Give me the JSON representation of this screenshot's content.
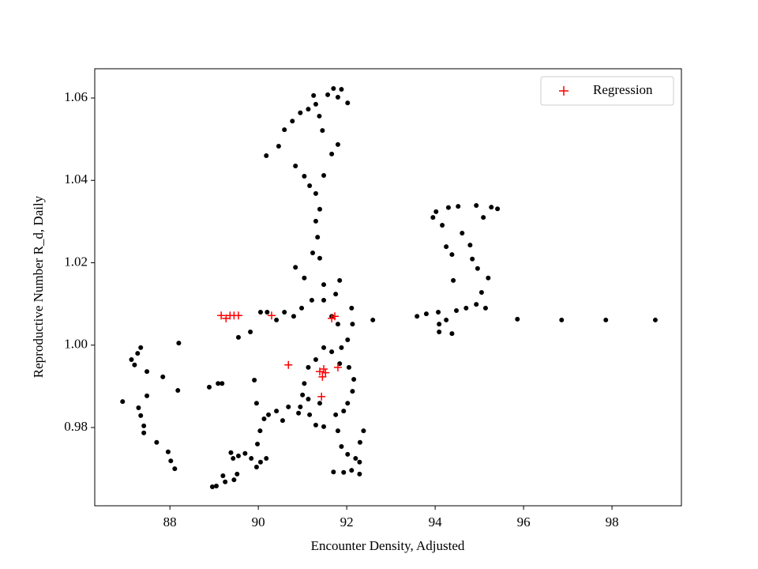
{
  "chart_data": {
    "type": "scatter",
    "xlabel": "Encounter Density, Adjusted",
    "ylabel": "Reproductive Number R_d, Daily",
    "xlim": [
      86.3,
      99.57
    ],
    "ylim": [
      0.961,
      1.0671
    ],
    "xticks": [
      88,
      90,
      92,
      94,
      96,
      98
    ],
    "yticks": [
      0.98,
      {
        "value": 1,
        "label": "1.00"
      },
      1.02,
      1.04,
      1.06
    ],
    "legend": "upper right",
    "series": [
      {
        "color": "#000000",
        "marker": "dot",
        "x": [
          86.93,
          87.13,
          87.2,
          87.27,
          87.34,
          87.48,
          87.48,
          87.29,
          87.34,
          87.41,
          87.41,
          87.7,
          87.84,
          87.96,
          88.02,
          88.11,
          88.18,
          88.2,
          88.89,
          89.09,
          89.18,
          88.96,
          89.05,
          89.2,
          89.25,
          89.38,
          89.43,
          89.45,
          89.52,
          89.55,
          89.7,
          89.84,
          89.96,
          90.05,
          90.18,
          89.98,
          90.04,
          90.13,
          89.91,
          89.96,
          90.23,
          90.41,
          90.55,
          90.68,
          90.91,
          91.13,
          91.39,
          90.18,
          90.46,
          90.59,
          90.77,
          90.95,
          91.13,
          91.25,
          91.3,
          91.38,
          91.45,
          91.57,
          91.7,
          91.88,
          91.8,
          92.02,
          91.8,
          91.66,
          91.48,
          90.84,
          91.04,
          91.16,
          91.3,
          91.39,
          91.3,
          91.34,
          91.23,
          91.39,
          91.04,
          90.84,
          91.48,
          91.84,
          91.75,
          92.11,
          92.13,
          92.02,
          91.88,
          91.66,
          91.48,
          91.3,
          91.13,
          91.04,
          91.0,
          90.95,
          91.16,
          91.3,
          91.48,
          91.75,
          91.93,
          92.02,
          92.13,
          92.16,
          92.05,
          91.84,
          91.8,
          91.88,
          92.02,
          92.2,
          92.3,
          92.38,
          92.29,
          92.11,
          91.93,
          91.7,
          92.29,
          90.59,
          90.41,
          90.05,
          90.2,
          89.82,
          89.55,
          90.8,
          90.98,
          91.21,
          91.48,
          91.66,
          91.8,
          92.59,
          93.59,
          93.8,
          94.07,
          94.09,
          94.09,
          94.38,
          94.25,
          94.48,
          94.7,
          94.93,
          95.14,
          95.05,
          95.2,
          94.96,
          94.79,
          94.84,
          94.61,
          94.38,
          94.25,
          94.16,
          93.95,
          94.02,
          94.3,
          94.52,
          94.93,
          95.27,
          95.41,
          95.09,
          94.41,
          95.86,
          96.86,
          97.86,
          98.98
        ],
        "y": [
          0.9863,
          0.9965,
          0.9952,
          0.998,
          0.9994,
          0.9936,
          0.9877,
          0.9848,
          0.9829,
          0.9804,
          0.9787,
          0.9764,
          0.9923,
          0.9741,
          0.9719,
          0.97,
          0.989,
          1.0005,
          0.9898,
          0.9907,
          0.9907,
          0.9656,
          0.9658,
          0.9683,
          0.9668,
          0.9739,
          0.9725,
          0.9673,
          0.9687,
          0.9731,
          0.9737,
          0.9725,
          0.9704,
          0.9716,
          0.9725,
          0.976,
          0.9792,
          0.9821,
          0.9915,
          0.9859,
          0.9831,
          0.984,
          0.9817,
          0.985,
          0.9835,
          0.9869,
          0.9859,
          1.046,
          1.0483,
          1.0523,
          1.0544,
          1.0564,
          1.0573,
          1.0606,
          1.0585,
          1.0556,
          1.0521,
          1.0608,
          1.0623,
          1.0621,
          1.0602,
          1.0588,
          1.0487,
          1.0464,
          1.0412,
          1.0435,
          1.041,
          1.0387,
          1.0368,
          1.033,
          1.0301,
          1.0262,
          1.0224,
          1.0211,
          1.0163,
          1.0189,
          1.0147,
          1.0157,
          1.0124,
          1.009,
          1.0051,
          1.0013,
          0.9994,
          0.9984,
          0.9994,
          0.9965,
          0.9946,
          0.9907,
          0.9879,
          0.985,
          0.9831,
          0.9806,
          0.9802,
          0.9831,
          0.984,
          0.9859,
          0.9888,
          0.9917,
          0.9946,
          0.9955,
          0.9792,
          0.9754,
          0.9735,
          0.9725,
          0.9764,
          0.9792,
          0.9716,
          0.9696,
          0.9691,
          0.9692,
          0.9687,
          1.008,
          1.0061,
          1.008,
          1.008,
          1.0032,
          1.0019,
          1.007,
          1.009,
          1.0109,
          1.0109,
          1.007,
          1.0051,
          1.0061,
          1.007,
          1.0076,
          1.008,
          1.0051,
          1.0032,
          1.0028,
          1.0061,
          1.0084,
          1.009,
          1.0099,
          1.009,
          1.0128,
          1.0163,
          1.0186,
          1.0243,
          1.0209,
          1.0272,
          1.022,
          1.0239,
          1.0291,
          1.031,
          1.0324,
          1.0334,
          1.0337,
          1.0339,
          1.0335,
          1.0331,
          1.031,
          1.0157,
          1.0063,
          1.0061,
          1.0061,
          1.0061
        ]
      },
      {
        "name": "Regression",
        "color": "#ff0000",
        "marker": "plus",
        "x": [
          89.16,
          89.27,
          89.36,
          89.45,
          89.55,
          90.3,
          90.68,
          91.43,
          91.45,
          91.48,
          91.52,
          91.39,
          91.66,
          91.8,
          91.73
        ],
        "y": [
          1.0072,
          1.0065,
          1.0072,
          1.0072,
          1.0072,
          1.0072,
          0.9952,
          0.9875,
          0.9923,
          0.9942,
          0.9933,
          0.9936,
          1.0065,
          0.9946,
          1.007
        ]
      }
    ]
  }
}
